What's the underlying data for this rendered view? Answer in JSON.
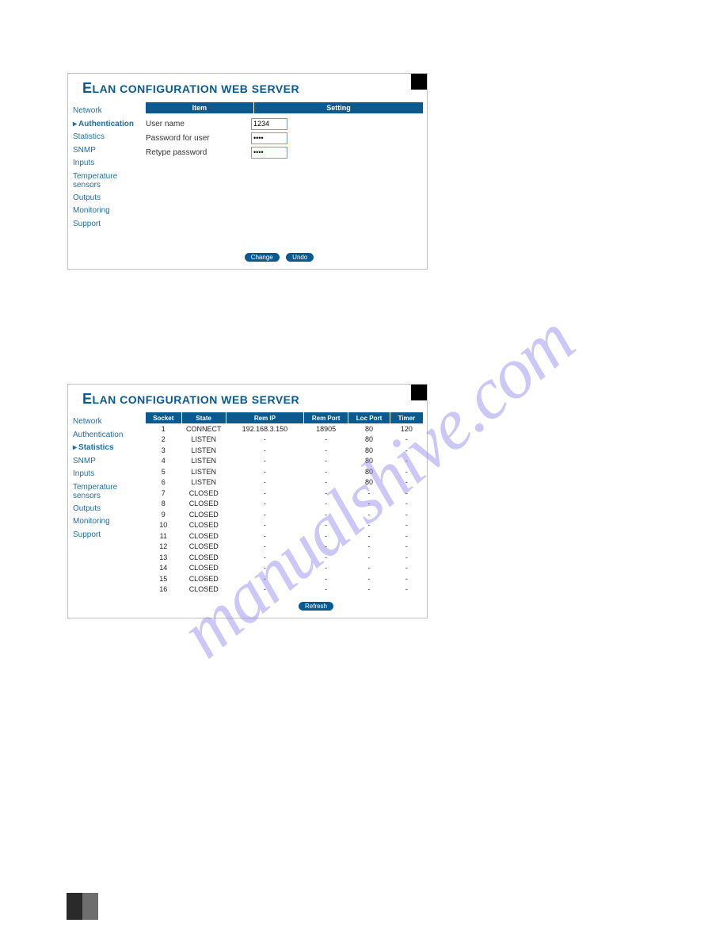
{
  "watermark_text": "manualshive.com",
  "panel1": {
    "title_big": "E",
    "title_rest": "LAN CONFIGURATION WEB SERVER",
    "nav": [
      "Network",
      "Authentication",
      "Statistics",
      "SNMP",
      "Inputs",
      "Temperature sensors",
      "Outputs",
      "Monitoring",
      "Support"
    ],
    "active_index": 1,
    "headers": {
      "item": "Item",
      "setting": "Setting"
    },
    "rows": [
      {
        "label": "User name",
        "type": "text",
        "value": "1234"
      },
      {
        "label": "Password for user",
        "type": "password",
        "value": "••••"
      },
      {
        "label": "Retype password",
        "type": "password",
        "value": "••••"
      }
    ],
    "buttons": {
      "change": "Change",
      "undo": "Undo"
    },
    "colors": {
      "header_bg": "#0b5a8f",
      "nav_link": "#1f6ea3"
    }
  },
  "panel2": {
    "title_big": "E",
    "title_rest": "LAN CONFIGURATION WEB SERVER",
    "nav": [
      "Network",
      "Authentication",
      "Statistics",
      "SNMP",
      "Inputs",
      "Temperature sensors",
      "Outputs",
      "Monitoring",
      "Support"
    ],
    "active_index": 2,
    "columns": [
      "Socket",
      "State",
      "Rem IP",
      "Rem Port",
      "Loc Port",
      "Timer"
    ],
    "col_widths_pct": [
      13,
      16,
      28,
      16,
      15,
      12
    ],
    "rows": [
      {
        "socket": "1",
        "state": "CONNECT",
        "remip": "192.168.3.150",
        "remport": "18905",
        "locport": "80",
        "timer": "120"
      },
      {
        "socket": "2",
        "state": "LISTEN",
        "remip": "-",
        "remport": "-",
        "locport": "80",
        "timer": "-"
      },
      {
        "socket": "3",
        "state": "LISTEN",
        "remip": "-",
        "remport": "-",
        "locport": "80",
        "timer": "-"
      },
      {
        "socket": "4",
        "state": "LISTEN",
        "remip": "-",
        "remport": "-",
        "locport": "80",
        "timer": "-"
      },
      {
        "socket": "5",
        "state": "LISTEN",
        "remip": "-",
        "remport": "-",
        "locport": "80",
        "timer": "-"
      },
      {
        "socket": "6",
        "state": "LISTEN",
        "remip": "-",
        "remport": "-",
        "locport": "80",
        "timer": "-"
      },
      {
        "socket": "7",
        "state": "CLOSED",
        "remip": "-",
        "remport": "-",
        "locport": "-",
        "timer": "-"
      },
      {
        "socket": "8",
        "state": "CLOSED",
        "remip": "-",
        "remport": "-",
        "locport": "-",
        "timer": "-"
      },
      {
        "socket": "9",
        "state": "CLOSED",
        "remip": "-",
        "remport": "-",
        "locport": "-",
        "timer": "-"
      },
      {
        "socket": "10",
        "state": "CLOSED",
        "remip": "-",
        "remport": "-",
        "locport": "-",
        "timer": "-"
      },
      {
        "socket": "11",
        "state": "CLOSED",
        "remip": "-",
        "remport": "-",
        "locport": "-",
        "timer": "-"
      },
      {
        "socket": "12",
        "state": "CLOSED",
        "remip": "-",
        "remport": "-",
        "locport": "-",
        "timer": "-"
      },
      {
        "socket": "13",
        "state": "CLOSED",
        "remip": "-",
        "remport": "-",
        "locport": "-",
        "timer": "-"
      },
      {
        "socket": "14",
        "state": "CLOSED",
        "remip": "-",
        "remport": "-",
        "locport": "-",
        "timer": "-"
      },
      {
        "socket": "15",
        "state": "CLOSED",
        "remip": "-",
        "remport": "-",
        "locport": "-",
        "timer": "-"
      },
      {
        "socket": "16",
        "state": "CLOSED",
        "remip": "-",
        "remport": "-",
        "locport": "-",
        "timer": "-"
      }
    ],
    "buttons": {
      "refresh": "Refresh"
    }
  }
}
